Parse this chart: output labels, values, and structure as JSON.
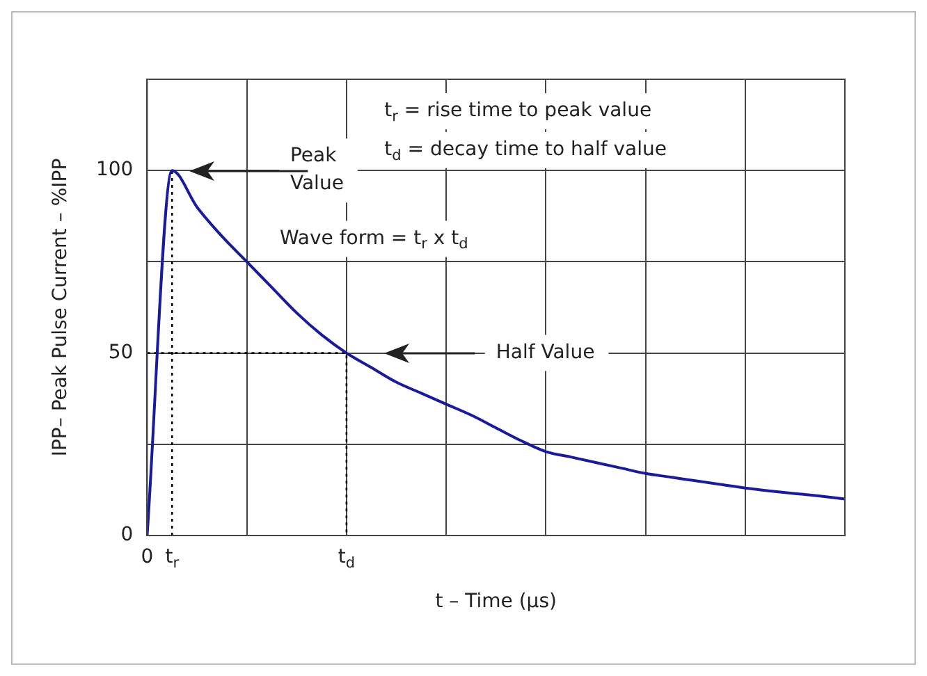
{
  "chart_data": {
    "type": "line",
    "xlabel": "t – Time (µs)",
    "ylabel": "IPP– Peak Pulse Current – %IPP",
    "categories": [
      "0",
      "t$_{r}$",
      null,
      null,
      null,
      null,
      null,
      null,
      "t$_{d}$",
      null,
      null,
      null,
      null,
      null,
      null,
      null,
      null,
      null,
      null,
      null,
      null,
      null,
      null,
      null,
      null,
      null,
      null,
      null,
      null
    ],
    "ylim": [
      0,
      125
    ],
    "yticks": [
      0,
      {
        "value": 25,
        "label": null
      },
      50,
      {
        "value": 75,
        "label": null
      },
      100,
      {
        "value": 125,
        "label": null
      }
    ],
    "grid": true,
    "legend": false,
    "marker": "none",
    "series": [
      {
        "color": "#1a1a9c",
        "line_style": "solid",
        "values": [
          0,
          100,
          90,
          82,
          75,
          68,
          61,
          55,
          50,
          46,
          42,
          39,
          36,
          33,
          29.5,
          26,
          23,
          21.5,
          20,
          18.5,
          17,
          16,
          15,
          14,
          13,
          12.2,
          11.5,
          10.8,
          10
        ]
      },
      {
        "color": "#000000",
        "line_style": "dotted",
        "x": [
          "t$_{r}$",
          "t$_{r}$"
        ],
        "values": [
          0,
          100
        ]
      },
      {
        "color": "#000000",
        "line_style": "dotted",
        "x": [
          "0",
          "t$_{d}$",
          "t$_{d}$"
        ],
        "values": [
          50,
          50,
          0
        ]
      }
    ],
    "annotations": [
      "t$_{r}$ = rise time to peak value",
      "t$_{d}$ = decay time to half value",
      "Wave form = t$_{r}$ x t$_{d}$",
      "Peak Value",
      "Half Value"
    ]
  }
}
